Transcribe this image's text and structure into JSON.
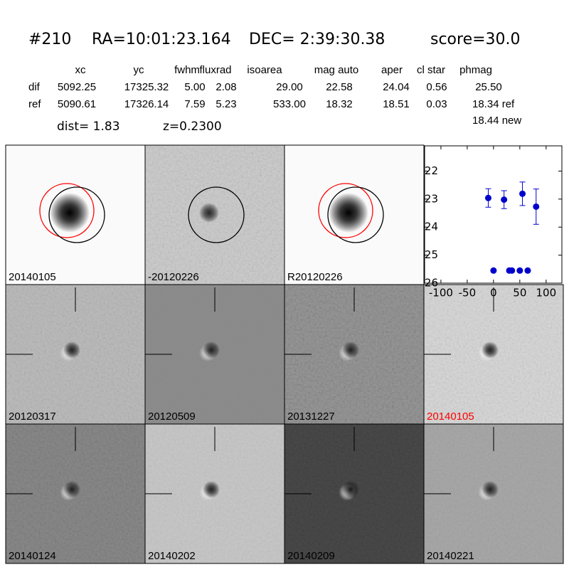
{
  "header": {
    "id": "#210",
    "ra": "RA=10:01:23.164",
    "dec": "DEC= 2:39:30.38",
    "score": "score=30.0"
  },
  "table": {
    "columns": [
      "xc",
      "yc",
      "fwhm",
      "fluxrad",
      "isoarea",
      "mag auto",
      "aper",
      "cl star",
      "phmag"
    ],
    "rows": [
      [
        "dif",
        "5092.25",
        "17325.32",
        "5.00",
        "2.08",
        "29.00",
        "22.58",
        "24.04",
        "0.56",
        "25.50"
      ],
      [
        "ref",
        "5090.61",
        "17326.14",
        "7.59",
        "5.23",
        "533.00",
        "18.32",
        "18.51",
        "0.03",
        "18.34 ref"
      ]
    ]
  },
  "dist": "dist=  1.83",
  "z": "z=0.2300",
  "extra": "18.44 new",
  "panels": [
    {
      "label": "20140105"
    },
    {
      "label": "-20120226"
    },
    {
      "label": "R20120226"
    },
    {
      "label": "20120317"
    },
    {
      "label": "20120509"
    },
    {
      "label": "20131227"
    },
    {
      "label": "20140105",
      "color": "#ff0000"
    },
    {
      "label": "20140124"
    },
    {
      "label": "20140202"
    },
    {
      "label": "20140209"
    },
    {
      "label": "20140221"
    }
  ],
  "chart_data": {
    "type": "scatter",
    "xlim": [
      -131,
      130
    ],
    "ylim": [
      21.1,
      26
    ],
    "invert_y": true,
    "xticks": [
      -100,
      -50,
      0,
      50,
      100
    ],
    "yticks": [
      22,
      23,
      24,
      25,
      26
    ],
    "series": [
      {
        "color": "#0000cc",
        "x": [
          -10,
          20,
          55,
          81
        ],
        "y": [
          22.96,
          23.02,
          22.81,
          23.27
        ],
        "err": [
          0.33,
          0.32,
          0.42,
          0.63
        ]
      },
      {
        "color": "#0000cc",
        "x": [
          0,
          30,
          35,
          50,
          65
        ],
        "y": [
          25.55,
          25.55,
          25.55,
          25.55,
          25.55
        ]
      }
    ]
  }
}
